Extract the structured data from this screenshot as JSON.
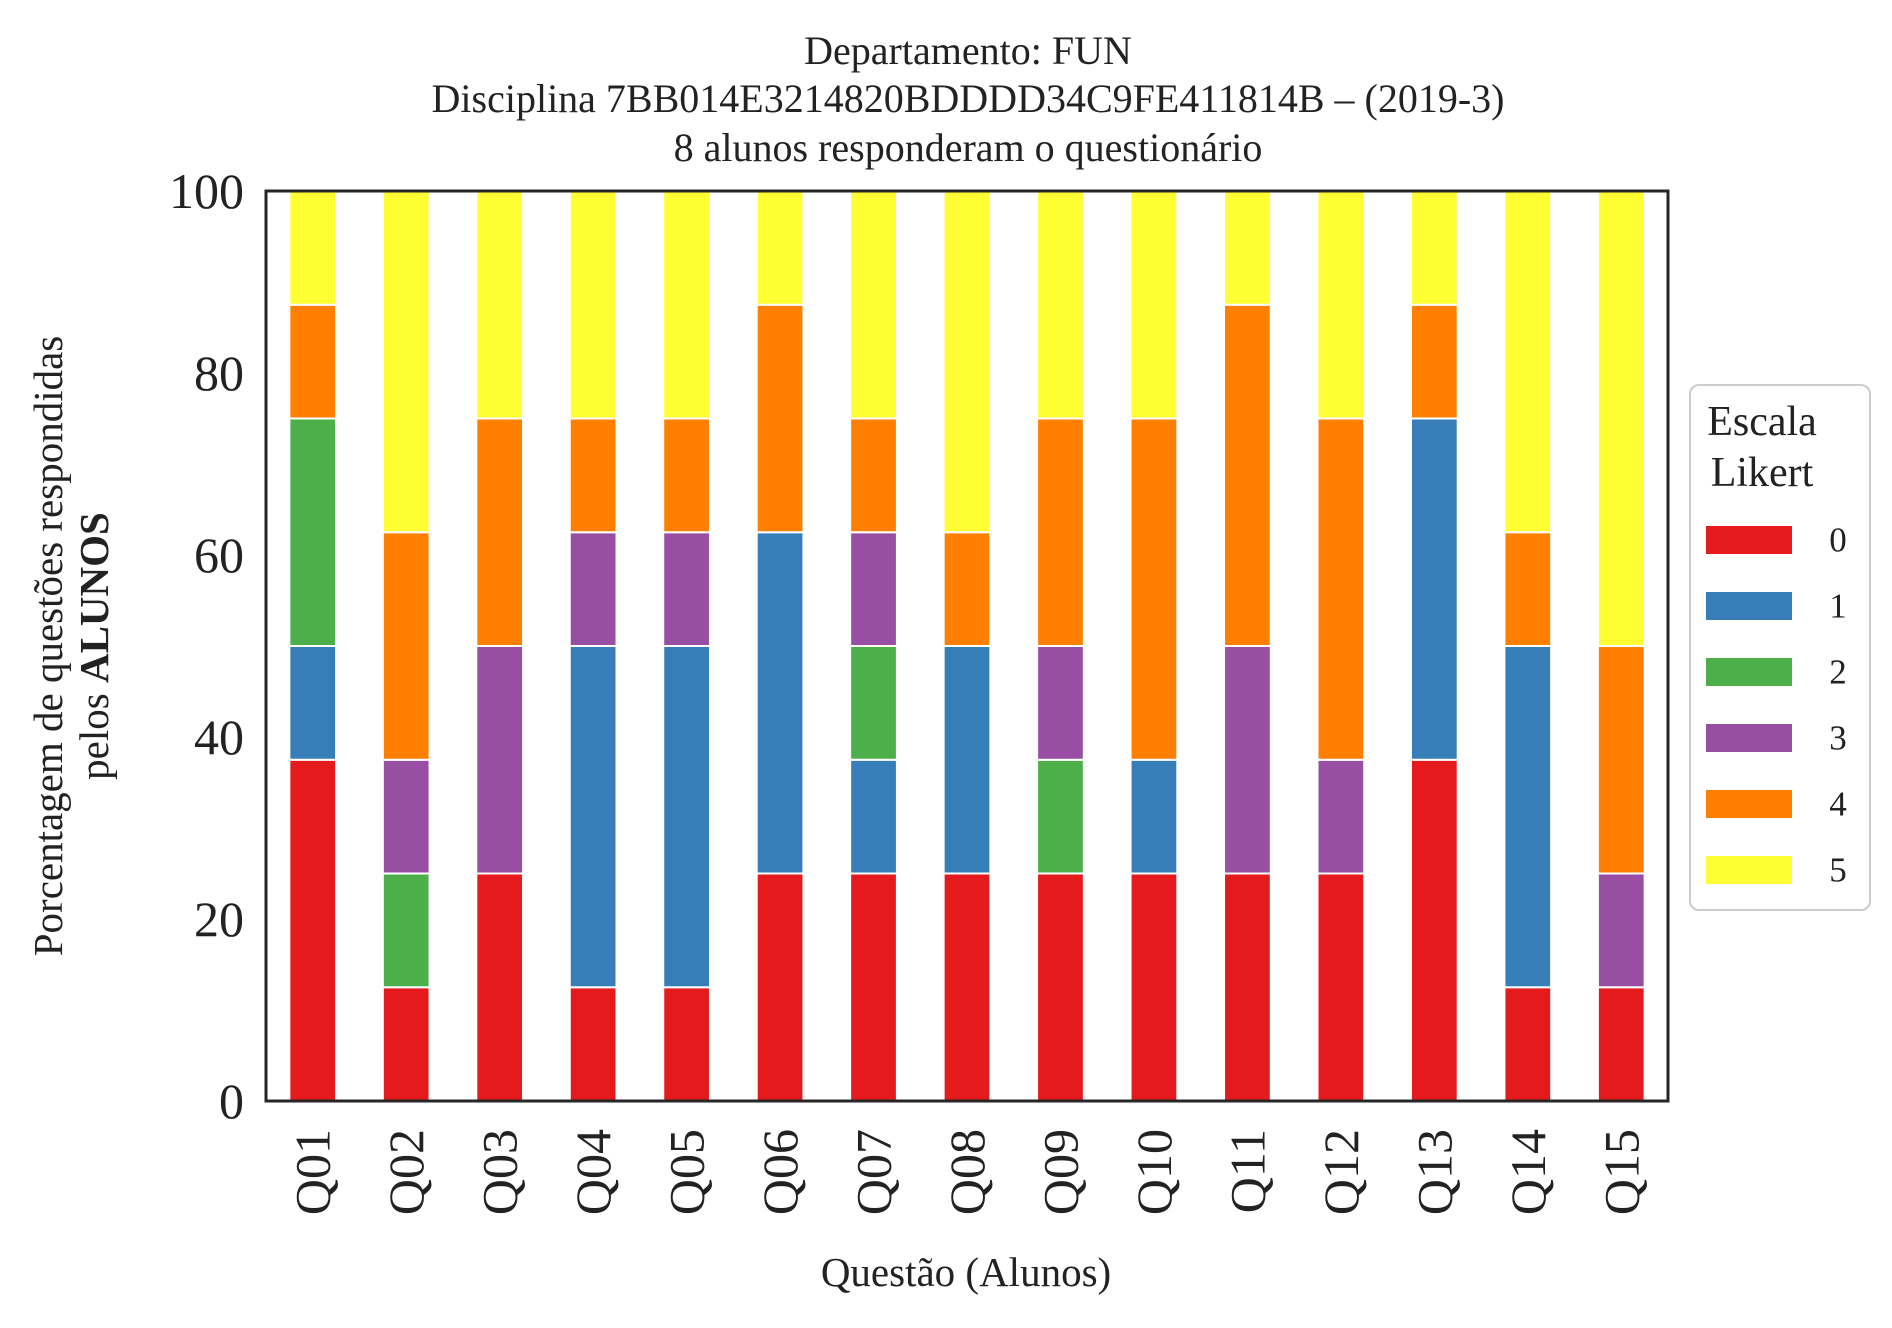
{
  "chart_data": {
    "type": "bar",
    "stacked": true,
    "title": {
      "line1": "Departamento: FUN",
      "line2": "Disciplina 7BB014E3214820BDDDD34C9FE411814B – (2019-3)",
      "line3": "8 alunos responderam o questionário"
    },
    "xlabel": "Questão (Alunos)",
    "ylabel": {
      "line1": "Porcentagem de questões respondidas",
      "line2_prefix": "pelos ",
      "line2_bold": "ALUNOS"
    },
    "ylim": [
      0,
      100
    ],
    "yticks": [
      "0",
      "20",
      "40",
      "60",
      "80",
      "100"
    ],
    "categories": [
      "Q01",
      "Q02",
      "Q03",
      "Q04",
      "Q05",
      "Q06",
      "Q07",
      "Q08",
      "Q09",
      "Q10",
      "Q11",
      "Q12",
      "Q13",
      "Q14",
      "Q15"
    ],
    "legend": {
      "title_line1": "Escala",
      "title_line2": "Likert",
      "placement": "right"
    },
    "series": [
      {
        "name": "0",
        "color": "#e41a1c",
        "values": [
          37.5,
          12.5,
          25,
          12.5,
          12.5,
          25,
          25,
          25,
          25,
          25,
          25,
          25,
          37.5,
          12.5,
          12.5
        ]
      },
      {
        "name": "1",
        "color": "#377eb8",
        "values": [
          12.5,
          0,
          0,
          37.5,
          37.5,
          37.5,
          12.5,
          25,
          0,
          12.5,
          0,
          0,
          37.5,
          37.5,
          0
        ]
      },
      {
        "name": "2",
        "color": "#4daf4a",
        "values": [
          25,
          12.5,
          0,
          0,
          0,
          0,
          12.5,
          0,
          12.5,
          0,
          0,
          0,
          0,
          0,
          0
        ]
      },
      {
        "name": "3",
        "color": "#984ea3",
        "values": [
          0,
          12.5,
          25,
          12.5,
          12.5,
          0,
          12.5,
          0,
          12.5,
          0,
          25,
          12.5,
          0,
          0,
          12.5
        ]
      },
      {
        "name": "4",
        "color": "#ff7f00",
        "values": [
          12.5,
          25,
          25,
          12.5,
          12.5,
          25,
          12.5,
          12.5,
          25,
          37.5,
          37.5,
          37.5,
          12.5,
          12.5,
          25
        ]
      },
      {
        "name": "5",
        "color": "#ffff33",
        "values": [
          12.5,
          37.5,
          25,
          25,
          25,
          12.5,
          25,
          37.5,
          25,
          25,
          12.5,
          25,
          12.5,
          37.5,
          50
        ]
      }
    ]
  }
}
